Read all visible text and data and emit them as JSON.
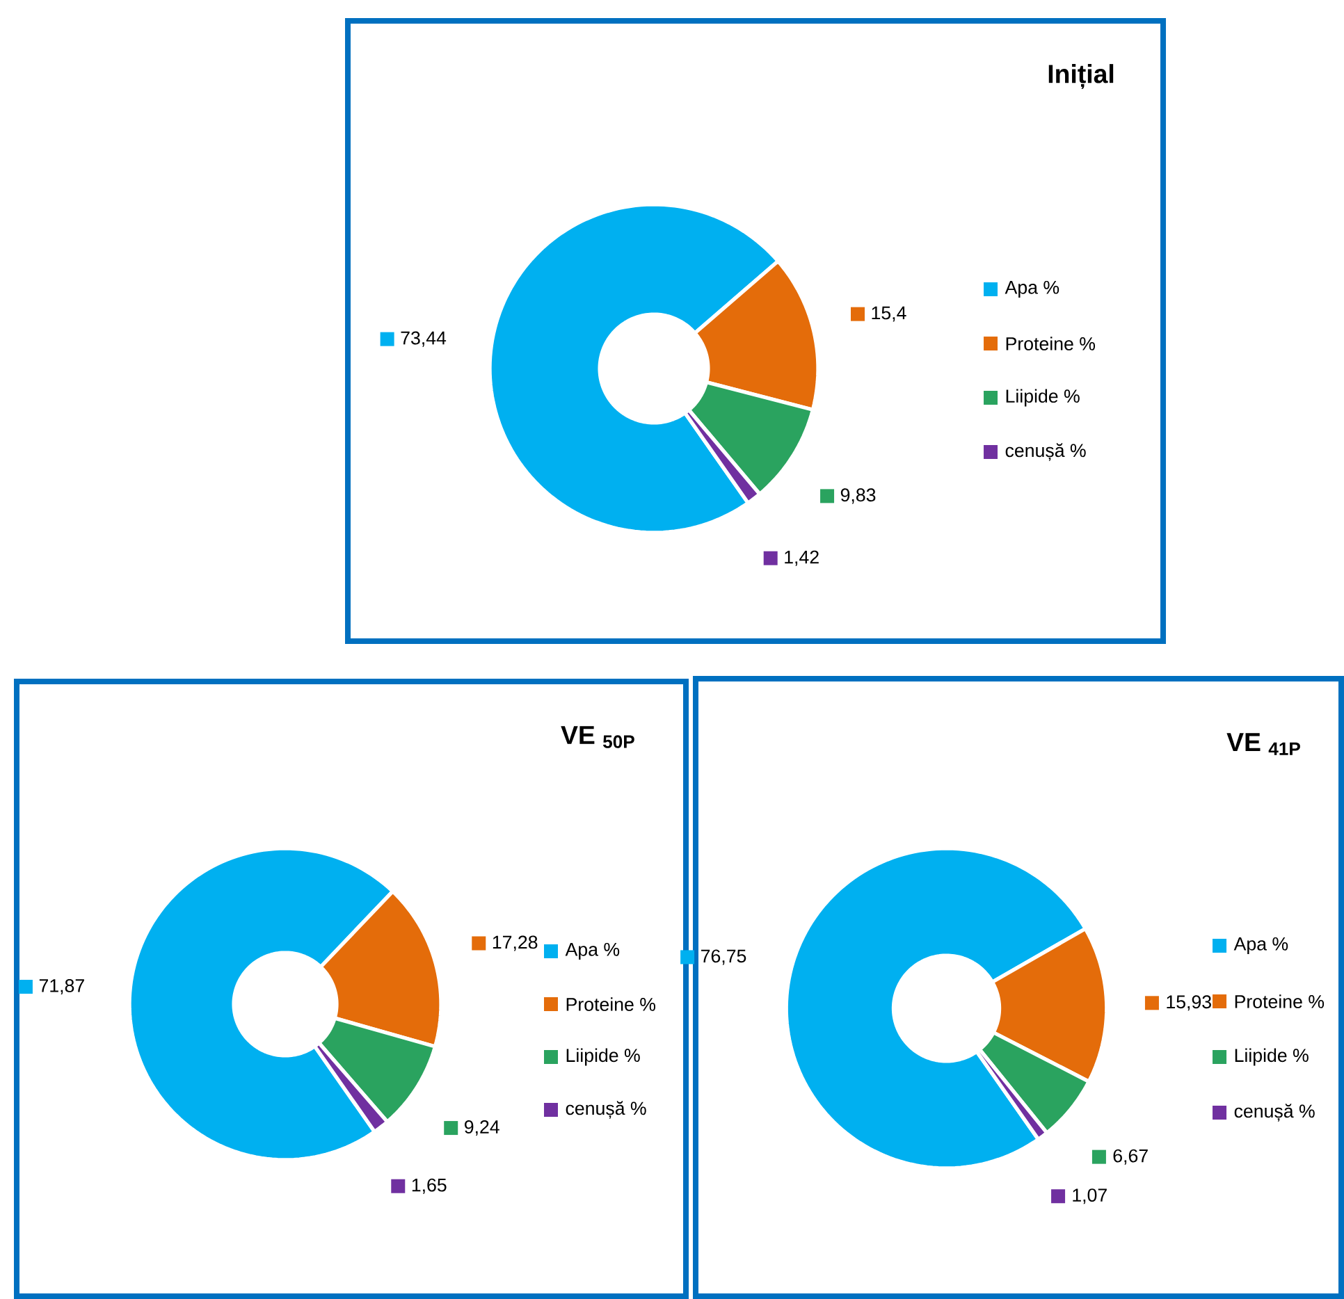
{
  "chart_data": [
    {
      "type": "donut",
      "title": "Inițial",
      "categories": [
        "Apa %",
        "Proteine %",
        "Liipide %",
        "cenușă %"
      ],
      "values": [
        73.44,
        15.4,
        9.83,
        1.42
      ],
      "value_labels": [
        "73,44",
        "15,4",
        "9,83",
        "1,42"
      ],
      "colors": [
        "#00b0f0",
        "#e46c0a",
        "#2aa35f",
        "#7030a0"
      ],
      "legend": "right"
    },
    {
      "type": "donut",
      "title": "VE $_{50P}$",
      "categories": [
        "Apa %",
        "Proteine %",
        "Liipide %",
        "cenușă %"
      ],
      "values": [
        71.87,
        17.28,
        9.24,
        1.65
      ],
      "value_labels": [
        "71,87",
        "17,28",
        "9,24",
        "1,65"
      ],
      "colors": [
        "#00b0f0",
        "#e46c0a",
        "#2aa35f",
        "#7030a0"
      ],
      "legend": "right"
    },
    {
      "type": "donut",
      "title": "VE $_{41P}$",
      "categories": [
        "Apa %",
        "Proteine %",
        "Liipide %",
        "cenușă %"
      ],
      "values": [
        76.75,
        15.93,
        6.67,
        1.07
      ],
      "value_labels": [
        "76,75",
        "15,93",
        "6,67",
        "1,07"
      ],
      "colors": [
        "#00b0f0",
        "#e46c0a",
        "#2aa35f",
        "#7030a0"
      ],
      "legend": "right"
    }
  ]
}
